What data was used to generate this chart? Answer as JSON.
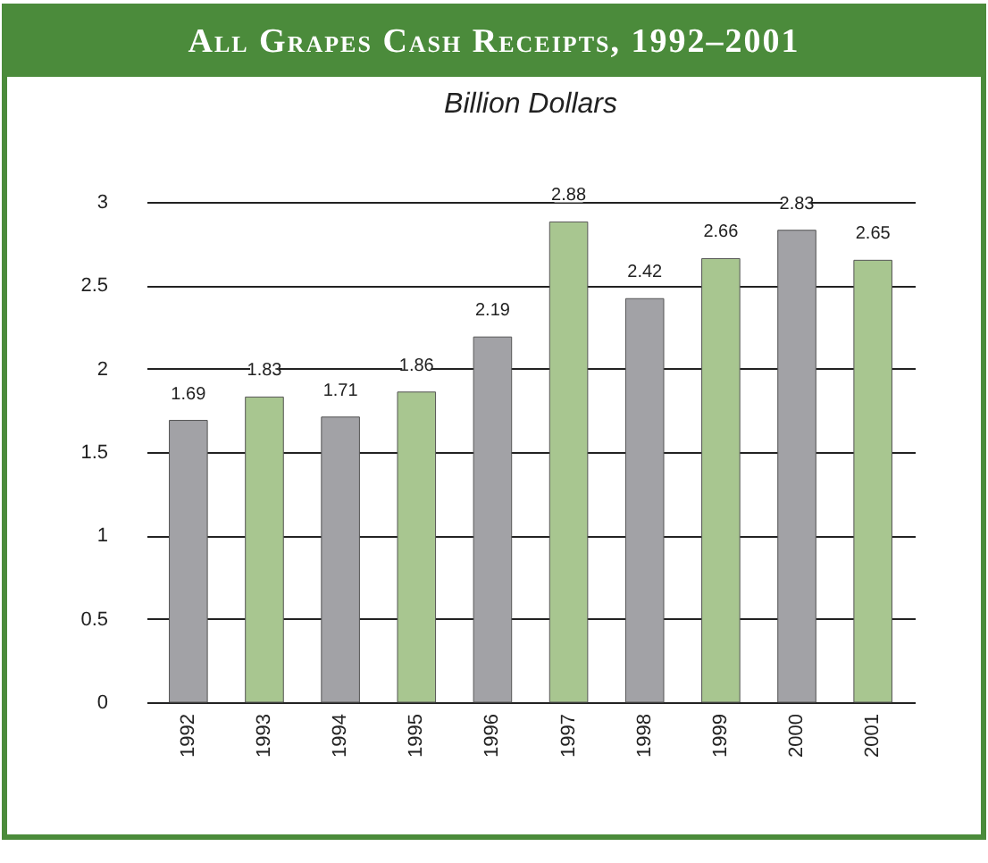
{
  "chart_data": {
    "type": "bar",
    "title": "All Grapes Cash Receipts, 1992–2001",
    "subtitle": "Billion Dollars",
    "categories": [
      "1992",
      "1993",
      "1994",
      "1995",
      "1996",
      "1997",
      "1998",
      "1999",
      "2000",
      "2001"
    ],
    "values": [
      1.69,
      1.83,
      1.71,
      1.86,
      2.19,
      2.88,
      2.42,
      2.66,
      2.83,
      2.65
    ],
    "colors": [
      "#a2a2a6",
      "#a8c690",
      "#a2a2a6",
      "#a8c690",
      "#a2a2a6",
      "#a8c690",
      "#a2a2a6",
      "#a8c690",
      "#a2a2a6",
      "#a8c690"
    ],
    "ylim": [
      0,
      3
    ],
    "yticks": [
      0,
      0.5,
      1,
      1.5,
      2,
      2.5,
      3
    ],
    "grid": "y",
    "data_labels": true
  }
}
